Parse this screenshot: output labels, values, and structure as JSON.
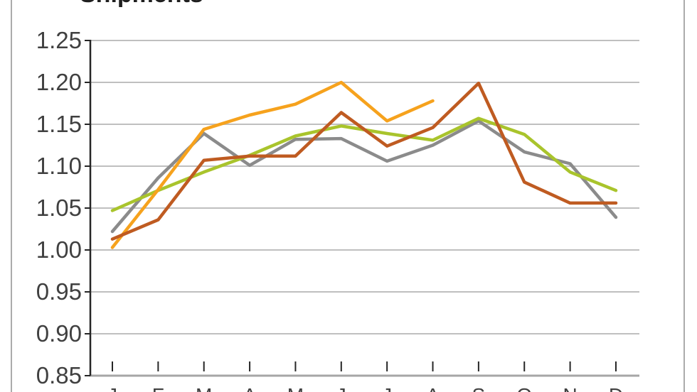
{
  "title": "Shipments",
  "colors": {
    "gridline": "#bfbfbf",
    "bottom_axis": "#a6a6a6",
    "y_axis_line": "#262626",
    "tick": "#262626",
    "axis_label": "#404040",
    "title_text": "#1f1f1f",
    "window_border": "#ababab",
    "series_orange": "#f6a21d",
    "series_brown": "#bf5b21",
    "series_gray": "#8b8b8b",
    "series_green": "#a9c42c"
  },
  "y_axis": {
    "tick_labels": [
      "1.25",
      "1.20",
      "1.15",
      "1.10",
      "1.05",
      "1.00",
      "0.95",
      "0.90",
      "0.85"
    ],
    "tick_values": [
      1.25,
      1.2,
      1.15,
      1.1,
      1.05,
      1.0,
      0.95,
      0.9,
      0.85
    ]
  },
  "x_axis": {
    "tick_labels": [
      "J",
      "F",
      "M",
      "A",
      "M",
      "J",
      "J",
      "A",
      "S",
      "O",
      "N",
      "D"
    ]
  },
  "chart_data": {
    "type": "line",
    "title": "Shipments",
    "xlabel": "",
    "ylabel": "",
    "ylim": [
      0.85,
      1.25
    ],
    "y_step": 0.05,
    "grid": true,
    "legend_position": "none",
    "categories": [
      "J",
      "F",
      "M",
      "A",
      "M",
      "J",
      "J",
      "A",
      "S",
      "O",
      "N",
      "D"
    ],
    "series": [
      {
        "name": "gray",
        "color": "#8b8b8b",
        "values": [
          1.022,
          1.086,
          1.139,
          1.101,
          1.132,
          1.133,
          1.106,
          1.125,
          1.154,
          1.117,
          1.103,
          1.039
        ]
      },
      {
        "name": "green",
        "color": "#a9c42c",
        "values": [
          1.047,
          1.071,
          1.093,
          1.113,
          1.136,
          1.148,
          1.139,
          1.131,
          1.157,
          1.138,
          1.093,
          1.071
        ]
      },
      {
        "name": "orange",
        "color": "#f6a21d",
        "values": [
          1.003,
          1.072,
          1.144,
          1.161,
          1.174,
          1.2,
          1.154,
          1.178,
          null,
          null,
          null,
          null
        ]
      },
      {
        "name": "brown",
        "color": "#bf5b21",
        "values": [
          1.013,
          1.036,
          1.107,
          1.112,
          1.112,
          1.164,
          1.124,
          1.146,
          1.199,
          1.081,
          1.056,
          1.056
        ]
      }
    ]
  }
}
